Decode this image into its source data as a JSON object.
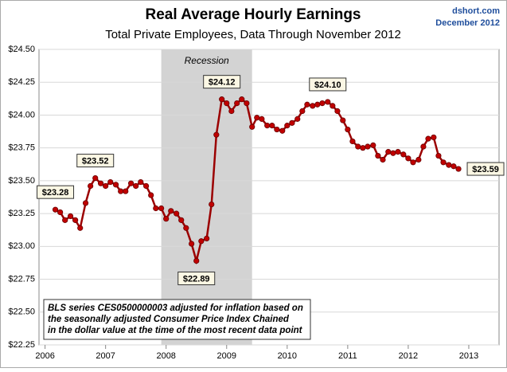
{
  "chart_data": {
    "type": "line",
    "title": "Real Average Hourly Earnings",
    "subtitle": "Total Private Employees, Data Through November 2012",
    "source": "dshort.com",
    "source_date": "December 2012",
    "recession_label": "Recession",
    "recession": [
      2007.92,
      2009.42
    ],
    "note": [
      "BLS series CES0500000003 adjusted for inflation based on",
      "the seasonally adjusted Consumer Price Index Chained",
      "in the dollar value at the time of the most recent data point"
    ],
    "color": "#9b0000",
    "marker_color": "#c00000",
    "grid": true,
    "xlim": [
      2005.9,
      2013.5
    ],
    "xticks": [
      2006,
      2007,
      2008,
      2009,
      2010,
      2011,
      2012,
      2013
    ],
    "ylim": [
      22.25,
      24.5
    ],
    "yticks": [
      {
        "value": 22.25,
        "label": "$22.25"
      },
      {
        "value": 22.5,
        "label": "$22.50"
      },
      {
        "value": 22.75,
        "label": "$22.75"
      },
      {
        "value": 23,
        "label": "$23.00"
      },
      {
        "value": 23.25,
        "label": "$23.25"
      },
      {
        "value": 23.5,
        "label": "$23.50"
      },
      {
        "value": 23.75,
        "label": "$23.75"
      },
      {
        "value": 24,
        "label": "$24.00"
      },
      {
        "value": 24.25,
        "label": "$24.25"
      },
      {
        "value": 24.5,
        "label": "$24.50"
      }
    ],
    "x": [
      2006.17,
      2006.25,
      2006.33,
      2006.42,
      2006.5,
      2006.58,
      2006.67,
      2006.75,
      2006.83,
      2006.92,
      2007.0,
      2007.08,
      2007.17,
      2007.25,
      2007.33,
      2007.42,
      2007.5,
      2007.58,
      2007.67,
      2007.75,
      2007.83,
      2007.92,
      2008.0,
      2008.08,
      2008.17,
      2008.25,
      2008.33,
      2008.42,
      2008.5,
      2008.58,
      2008.67,
      2008.75,
      2008.83,
      2008.92,
      2009.0,
      2009.08,
      2009.17,
      2009.25,
      2009.33,
      2009.42,
      2009.5,
      2009.58,
      2009.67,
      2009.75,
      2009.83,
      2009.92,
      2010.0,
      2010.08,
      2010.17,
      2010.25,
      2010.33,
      2010.42,
      2010.5,
      2010.58,
      2010.67,
      2010.75,
      2010.83,
      2010.92,
      2011.0,
      2011.08,
      2011.17,
      2011.25,
      2011.33,
      2011.42,
      2011.5,
      2011.58,
      2011.67,
      2011.75,
      2011.83,
      2011.92,
      2012.0,
      2012.08,
      2012.17,
      2012.25,
      2012.33,
      2012.42,
      2012.5,
      2012.58,
      2012.67,
      2012.75,
      2012.83
    ],
    "values": [
      23.28,
      23.26,
      23.2,
      23.23,
      23.2,
      23.14,
      23.33,
      23.46,
      23.52,
      23.48,
      23.46,
      23.49,
      23.47,
      23.42,
      23.42,
      23.48,
      23.46,
      23.49,
      23.46,
      23.39,
      23.29,
      23.29,
      23.21,
      23.27,
      23.25,
      23.2,
      23.14,
      23.02,
      22.89,
      23.04,
      23.06,
      23.32,
      23.85,
      24.12,
      24.09,
      24.03,
      24.09,
      24.12,
      24.09,
      23.91,
      23.98,
      23.97,
      23.92,
      23.92,
      23.89,
      23.88,
      23.92,
      23.94,
      23.97,
      24.03,
      24.08,
      24.07,
      24.08,
      24.09,
      24.1,
      24.07,
      24.03,
      23.96,
      23.89,
      23.8,
      23.76,
      23.75,
      23.76,
      23.77,
      23.69,
      23.66,
      23.72,
      23.71,
      23.72,
      23.7,
      23.67,
      23.64,
      23.66,
      23.76,
      23.82,
      23.83,
      23.69,
      23.64,
      23.62,
      23.61,
      23.59
    ],
    "value_labels": [
      "$23.28",
      null,
      null,
      null,
      null,
      null,
      null,
      null,
      "$23.52",
      null,
      null,
      null,
      null,
      null,
      null,
      null,
      null,
      null,
      null,
      null,
      null,
      null,
      null,
      null,
      null,
      null,
      null,
      null,
      "$22.89",
      null,
      null,
      null,
      null,
      "$24.12",
      null,
      null,
      null,
      null,
      null,
      null,
      null,
      null,
      null,
      null,
      null,
      null,
      null,
      null,
      null,
      null,
      null,
      null,
      null,
      null,
      "$24.10",
      null,
      null,
      null,
      null,
      null,
      null,
      null,
      null,
      null,
      null,
      null,
      null,
      null,
      null,
      null,
      null,
      null,
      null,
      null,
      null,
      null,
      null,
      null,
      null,
      null,
      "$23.59"
    ]
  }
}
